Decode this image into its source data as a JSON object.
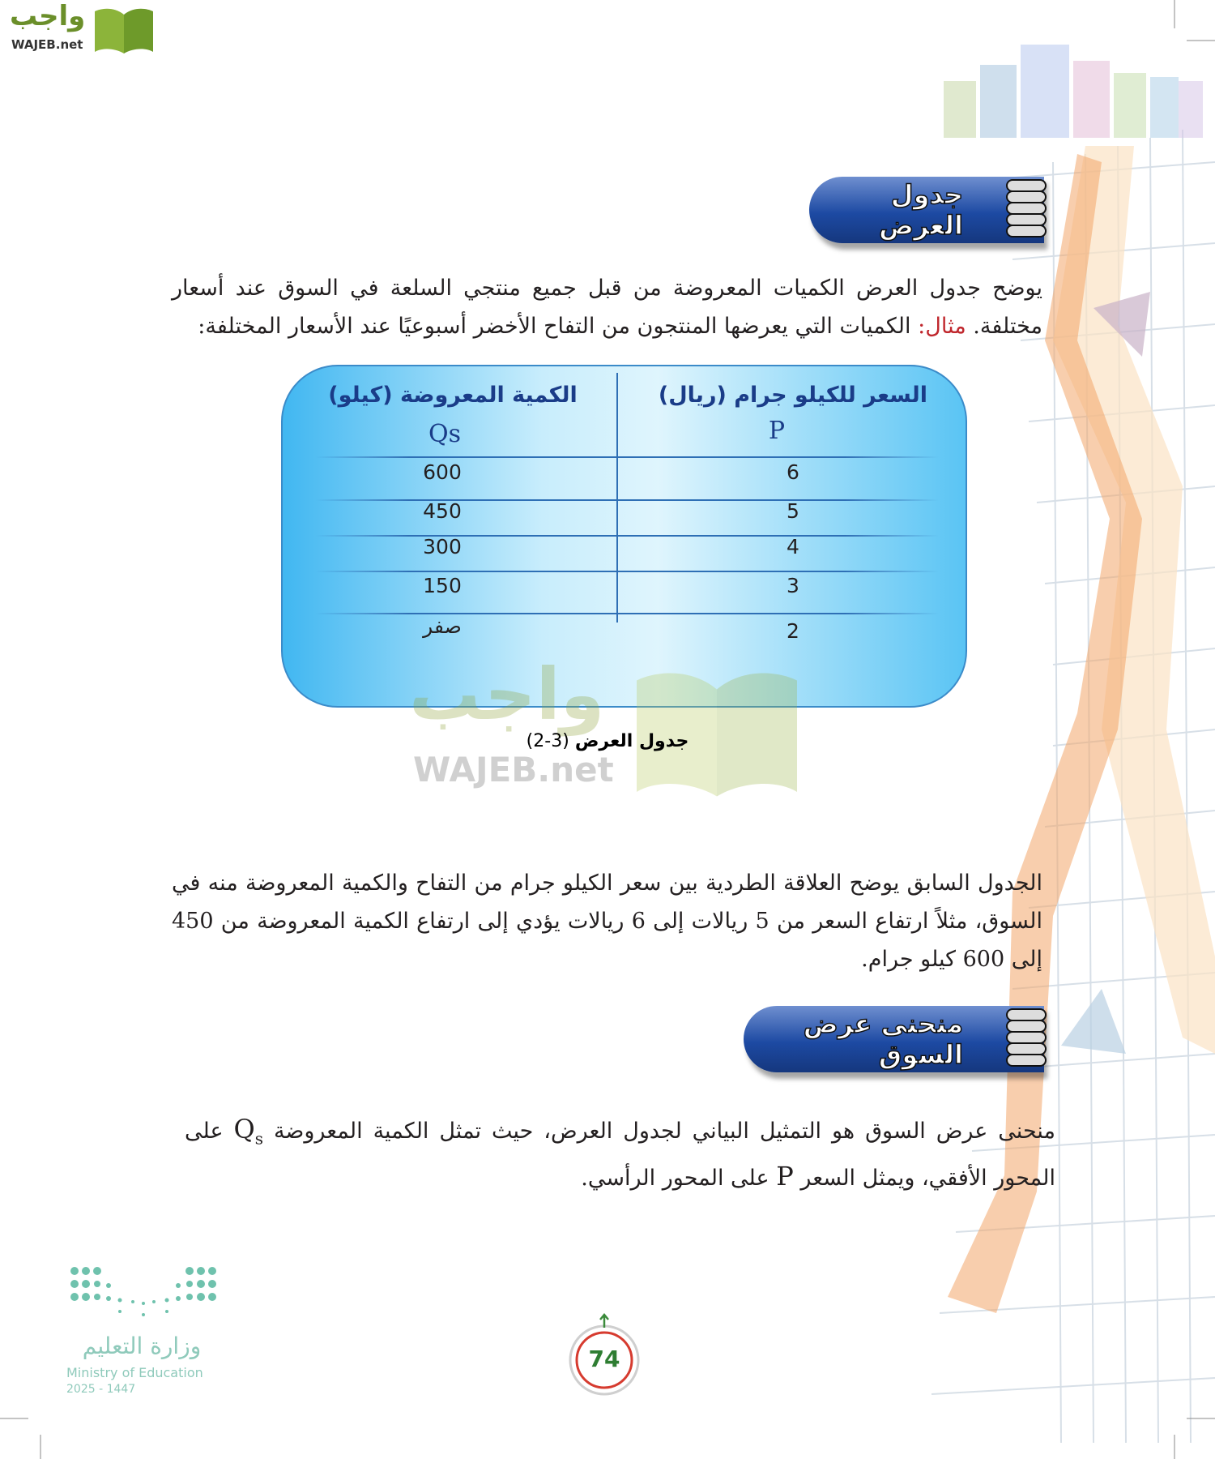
{
  "logo": {
    "arabic": "واجب",
    "latin": "WAJEB.net"
  },
  "section1": {
    "title": "جدول العرض",
    "paragraph_before": "يوضح جدول العرض الكميات المعروضة من قبل جميع منتجي السلعة في السوق عند أسعار مختلفة.",
    "example_label": "مثال:",
    "paragraph_after": "الكميات التي يعرضها المنتجون من التفاح الأخضر أسبوعيًا عند الأسعار المختلفة:"
  },
  "table": {
    "headers": {
      "price": "السعر للكيلو جرام (ريال)",
      "price_symbol": "P",
      "quantity": "الكمية المعروضة (كيلو)",
      "quantity_symbol": "Qs"
    },
    "rows": [
      {
        "price": "6",
        "quantity": "600"
      },
      {
        "price": "5",
        "quantity": "450"
      },
      {
        "price": "4",
        "quantity": "300"
      },
      {
        "price": "3",
        "quantity": "150"
      },
      {
        "price": "2",
        "quantity": "صفر"
      }
    ],
    "caption_number": "(3-2)",
    "caption_text": "جدول العرض"
  },
  "watermark": {
    "arabic": "واجب",
    "latin": "WAJEB.net"
  },
  "paragraph2": "الجدول السابق يوضح العلاقة الطردية بين سعر الكيلو جرام من التفاح والكمية المعروضة منه في السوق، مثلاً ارتفاع السعر من 5 ريالات إلى 6 ريالات يؤدي إلى ارتفاع الكمية المعروضة من 450 إلى 600 كيلو جرام.",
  "section2": {
    "title": "منحنى عرض السوق",
    "text_part1": "منحنى عرض السوق هو التمثيل البياني لجدول العرض، حيث تمثل الكمية المعروضة",
    "symbol_q": "Q",
    "symbol_q_sub": "s",
    "text_part2": "على المحور الأفقي، ويمثل السعر",
    "symbol_p": "P",
    "text_part3": "على المحور الرأسي."
  },
  "ministry": {
    "arabic": "وزارة التعليم",
    "english": "Ministry of Education",
    "year": "2025 - 1447"
  },
  "page_number": "74",
  "colors": {
    "banner": "#1d4aa3",
    "table_blue": "#41b7f1",
    "example_red": "#c0272d",
    "page_number_green": "#2e7d32",
    "logo_green": "#8cb43a"
  }
}
